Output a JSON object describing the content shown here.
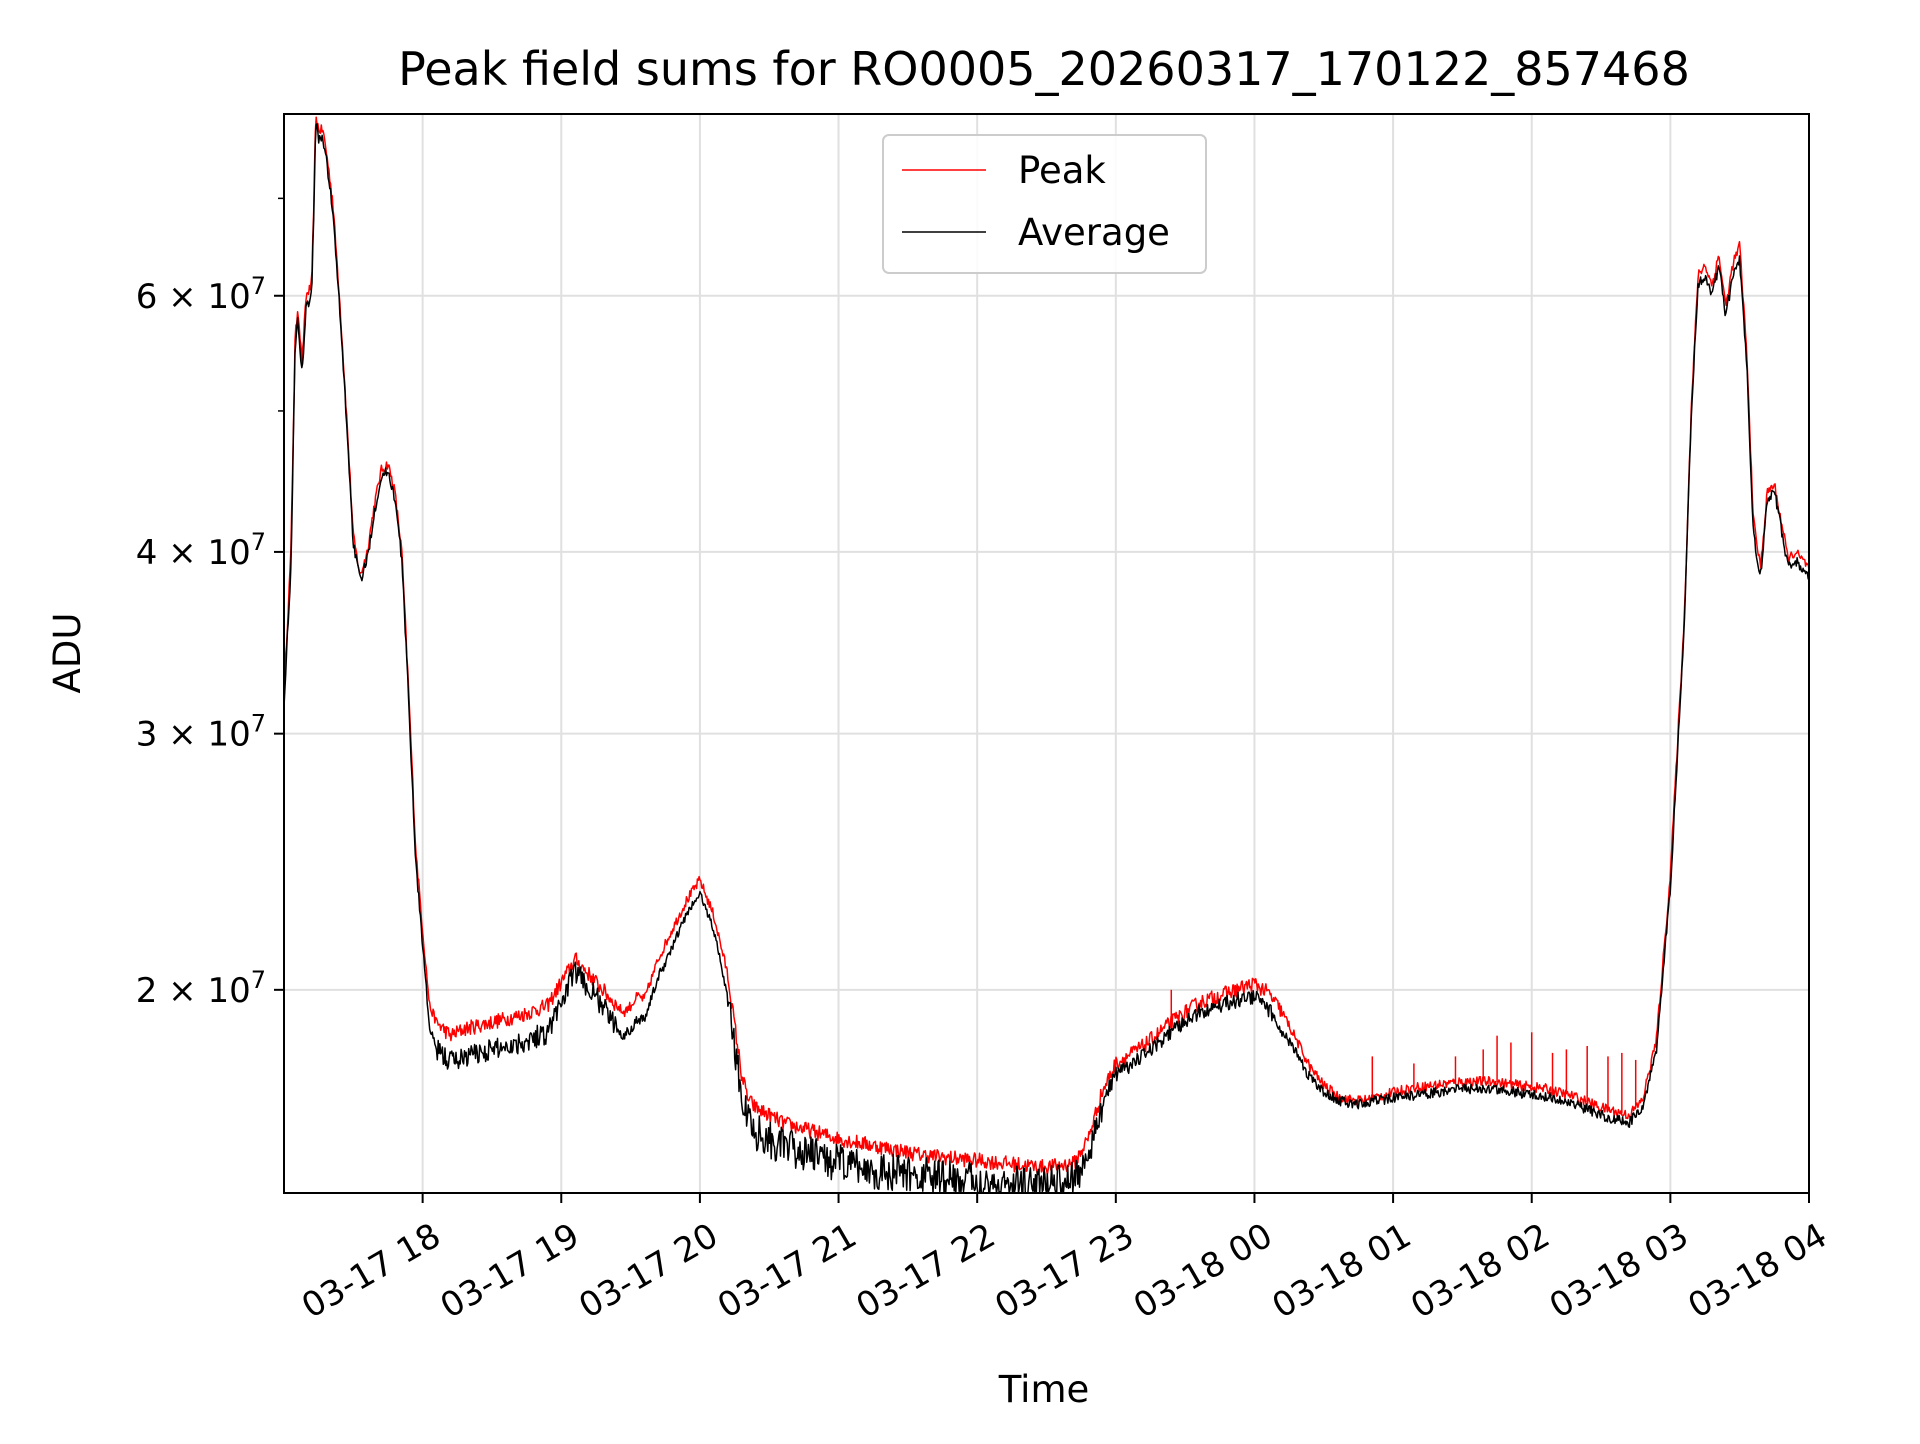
{
  "chart_data": {
    "type": "line",
    "title": "Peak field sums for RO0005_20260317_170122_857468",
    "xlabel": "Time",
    "ylabel": "ADU",
    "yscale": "log",
    "grid": true,
    "legend_position": "top-center",
    "x_unit": "hours since 03-17 17:00",
    "xlim": [
      0.0,
      11.0
    ],
    "ylim": [
      14500000,
      80000000
    ],
    "x_ticks": [
      {
        "x": 1,
        "label": "03-17 18"
      },
      {
        "x": 2,
        "label": "03-17 19"
      },
      {
        "x": 3,
        "label": "03-17 20"
      },
      {
        "x": 4,
        "label": "03-17 21"
      },
      {
        "x": 5,
        "label": "03-17 22"
      },
      {
        "x": 6,
        "label": "03-17 23"
      },
      {
        "x": 7,
        "label": "03-18 00"
      },
      {
        "x": 8,
        "label": "03-18 01"
      },
      {
        "x": 9,
        "label": "03-18 02"
      },
      {
        "x": 10,
        "label": "03-18 03"
      },
      {
        "x": 11,
        "label": "03-18 04"
      }
    ],
    "y_ticks": [
      {
        "y": 20000000,
        "base": "2",
        "exp": "7"
      },
      {
        "y": 30000000,
        "base": "3",
        "exp": "7"
      },
      {
        "y": 40000000,
        "base": "4",
        "exp": "7"
      },
      {
        "y": 60000000,
        "base": "6",
        "exp": "7"
      }
    ],
    "y_minor_ticks": [
      50000000,
      70000000
    ],
    "series": [
      {
        "name": "Peak",
        "color": "#ff0000",
        "x": [
          0.0,
          0.05,
          0.08,
          0.1,
          0.13,
          0.16,
          0.2,
          0.23,
          0.25,
          0.28,
          0.3,
          0.35,
          0.4,
          0.45,
          0.5,
          0.55,
          0.6,
          0.65,
          0.7,
          0.75,
          0.8,
          0.85,
          0.9,
          0.95,
          1.0,
          1.05,
          1.1,
          1.15,
          1.2,
          1.25,
          1.3,
          1.4,
          1.5,
          1.7,
          1.9,
          2.1,
          2.3,
          2.4,
          2.45,
          2.5,
          2.55,
          2.6,
          2.7,
          2.8,
          2.9,
          3.0,
          3.1,
          3.2,
          3.3,
          3.35,
          3.4,
          3.45,
          3.5,
          3.55,
          3.6,
          3.7,
          3.8,
          3.9,
          4.0,
          4.3,
          4.6,
          4.9,
          5.2,
          5.5,
          5.7,
          5.8,
          5.9,
          6.0,
          6.2,
          6.4,
          6.6,
          6.8,
          7.0,
          7.1,
          7.2,
          7.3,
          7.4,
          7.5,
          7.6,
          7.7,
          7.8,
          7.9,
          8.1,
          8.3,
          8.5,
          8.7,
          8.9,
          9.1,
          9.3,
          9.5,
          9.7,
          9.8,
          9.9,
          10.0,
          10.1,
          10.15,
          10.2,
          10.25,
          10.3,
          10.35,
          10.4,
          10.45,
          10.5,
          10.55,
          10.6,
          10.65,
          10.7,
          10.75,
          10.8,
          10.85,
          10.9,
          11.0
        ],
        "values": [
          32000000,
          40000000,
          56000000,
          59000000,
          54000000,
          60000000,
          61000000,
          80000000,
          78000000,
          78000000,
          76000000,
          70000000,
          60000000,
          50000000,
          41000000,
          38500000,
          40000000,
          43000000,
          45500000,
          46000000,
          44000000,
          40000000,
          32000000,
          25000000,
          22000000,
          19500000,
          19000000,
          18800000,
          18600000,
          18700000,
          18800000,
          18900000,
          19000000,
          19200000,
          19500000,
          21000000,
          20000000,
          19500000,
          19300000,
          19500000,
          19800000,
          19700000,
          21000000,
          22000000,
          23000000,
          23800000,
          22500000,
          20500000,
          17500000,
          16800000,
          16600000,
          16500000,
          16400000,
          16300000,
          16200000,
          16100000,
          16000000,
          15900000,
          15800000,
          15600000,
          15400000,
          15300000,
          15200000,
          15100000,
          15200000,
          15800000,
          17000000,
          17800000,
          18300000,
          19000000,
          19600000,
          19900000,
          20200000,
          19900000,
          19300000,
          18500000,
          17700000,
          17200000,
          16900000,
          16800000,
          16800000,
          16900000,
          17100000,
          17200000,
          17300000,
          17300000,
          17200000,
          17100000,
          16900000,
          16600000,
          16400000,
          16800000,
          18500000,
          24000000,
          36000000,
          50000000,
          62000000,
          63000000,
          61000000,
          64000000,
          59000000,
          63000000,
          65000000,
          55000000,
          42000000,
          39000000,
          44000000,
          44500000,
          42000000,
          39500000,
          40000000,
          39000000
        ],
        "spikes": [
          [
            6.4,
            20000000
          ],
          [
            7.85,
            18000000
          ],
          [
            8.15,
            17800000
          ],
          [
            8.45,
            18000000
          ],
          [
            8.65,
            18200000
          ],
          [
            8.75,
            18600000
          ],
          [
            8.85,
            18400000
          ],
          [
            9.0,
            18700000
          ],
          [
            9.15,
            18100000
          ],
          [
            9.25,
            18200000
          ],
          [
            9.4,
            18300000
          ],
          [
            9.55,
            18000000
          ],
          [
            9.65,
            18100000
          ],
          [
            9.75,
            17900000
          ]
        ]
      },
      {
        "name": "Average",
        "color": "#000000",
        "x": [
          0.0,
          0.05,
          0.08,
          0.1,
          0.13,
          0.16,
          0.2,
          0.23,
          0.25,
          0.28,
          0.3,
          0.35,
          0.4,
          0.45,
          0.5,
          0.55,
          0.6,
          0.65,
          0.7,
          0.75,
          0.8,
          0.85,
          0.9,
          0.95,
          1.0,
          1.05,
          1.1,
          1.15,
          1.2,
          1.25,
          1.3,
          1.4,
          1.5,
          1.7,
          1.9,
          2.1,
          2.3,
          2.4,
          2.45,
          2.5,
          2.55,
          2.6,
          2.7,
          2.8,
          2.9,
          3.0,
          3.1,
          3.2,
          3.3,
          3.35,
          3.4,
          3.45,
          3.5,
          3.55,
          3.6,
          3.7,
          3.8,
          3.9,
          4.0,
          4.3,
          4.6,
          4.9,
          5.2,
          5.5,
          5.7,
          5.8,
          5.9,
          6.0,
          6.2,
          6.4,
          6.6,
          6.8,
          7.0,
          7.1,
          7.2,
          7.3,
          7.4,
          7.5,
          7.6,
          7.7,
          7.8,
          7.9,
          8.1,
          8.3,
          8.5,
          8.7,
          8.9,
          9.1,
          9.3,
          9.5,
          9.7,
          9.8,
          9.9,
          10.0,
          10.1,
          10.15,
          10.2,
          10.25,
          10.3,
          10.35,
          10.4,
          10.45,
          10.5,
          10.55,
          10.6,
          10.65,
          10.7,
          10.75,
          10.8,
          10.85,
          10.9,
          11.0
        ],
        "values": [
          31500000,
          39000000,
          55000000,
          58000000,
          53000000,
          59000000,
          60000000,
          79000000,
          77000000,
          77000000,
          75000000,
          69000000,
          59000000,
          49500000,
          40500000,
          38200000,
          39500000,
          42500000,
          45000000,
          45500000,
          43500000,
          39500000,
          31500000,
          24500000,
          21500000,
          18800000,
          18200000,
          18000000,
          17900000,
          17900000,
          18000000,
          18100000,
          18200000,
          18400000,
          18700000,
          20600000,
          19500000,
          18800000,
          18600000,
          18800000,
          19100000,
          19100000,
          20400000,
          21400000,
          22500000,
          23300000,
          22000000,
          19800000,
          16900000,
          16300000,
          16000000,
          15900000,
          15800000,
          15700000,
          15600000,
          15500000,
          15400000,
          15300000,
          15200000,
          15000000,
          14900000,
          14800000,
          14700000,
          14700000,
          14800000,
          15400000,
          16700000,
          17500000,
          18000000,
          18700000,
          19300000,
          19600000,
          19800000,
          19400000,
          18800000,
          18100000,
          17400000,
          17000000,
          16800000,
          16700000,
          16700000,
          16800000,
          16900000,
          17000000,
          17100000,
          17100000,
          17000000,
          16900000,
          16700000,
          16400000,
          16200000,
          16600000,
          18200000,
          23500000,
          35500000,
          49500000,
          61000000,
          62000000,
          60000000,
          63000000,
          58000000,
          62000000,
          63500000,
          54000000,
          41000000,
          38500000,
          43500000,
          44000000,
          41500000,
          39000000,
          39500000,
          38500000
        ],
        "spikes": []
      }
    ]
  }
}
